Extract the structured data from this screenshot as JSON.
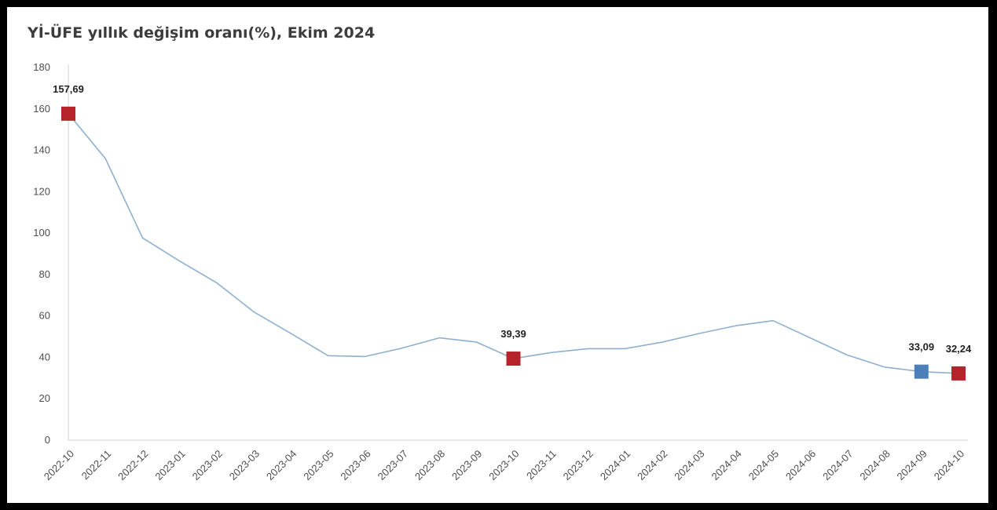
{
  "chart_data": {
    "type": "line",
    "title": "Yİ-ÜFE yıllık değişim oranı(%), Ekim 2024",
    "xlabel": "",
    "ylabel": "",
    "ylim": [
      0,
      180
    ],
    "yticks": [
      0,
      20,
      40,
      60,
      80,
      100,
      120,
      140,
      160,
      180
    ],
    "grid": false,
    "legend": "none",
    "categories": [
      "2022-10",
      "2022-11",
      "2022-12",
      "2023-01",
      "2023-02",
      "2023-03",
      "2023-04",
      "2023-05",
      "2023-06",
      "2023-07",
      "2023-08",
      "2023-09",
      "2023-10",
      "2023-11",
      "2023-12",
      "2024-01",
      "2024-02",
      "2024-03",
      "2024-04",
      "2024-05",
      "2024-06",
      "2024-07",
      "2024-08",
      "2024-09",
      "2024-10"
    ],
    "series": [
      {
        "values": [
          157.69,
          136.0,
          97.7,
          86.5,
          76.0,
          62.0,
          51.5,
          40.8,
          40.4,
          44.5,
          49.4,
          47.4,
          39.39,
          42.3,
          44.2,
          44.2,
          47.3,
          51.5,
          55.3,
          57.7,
          49.4,
          41.1,
          35.3,
          33.09,
          32.24
        ],
        "color": "#8eb0cf"
      }
    ],
    "highlights": [
      {
        "category": "2022-10",
        "value": 157.69,
        "label": "157,69",
        "color": "#b5242b"
      },
      {
        "category": "2023-10",
        "value": 39.39,
        "label": "39,39",
        "color": "#b5242b"
      },
      {
        "category": "2024-09",
        "value": 33.09,
        "label": "33,09",
        "color": "#4a7fb8"
      },
      {
        "category": "2024-10",
        "value": 32.24,
        "label": "32,24",
        "color": "#b5242b"
      }
    ],
    "axis_color": "#d0d0d0"
  }
}
